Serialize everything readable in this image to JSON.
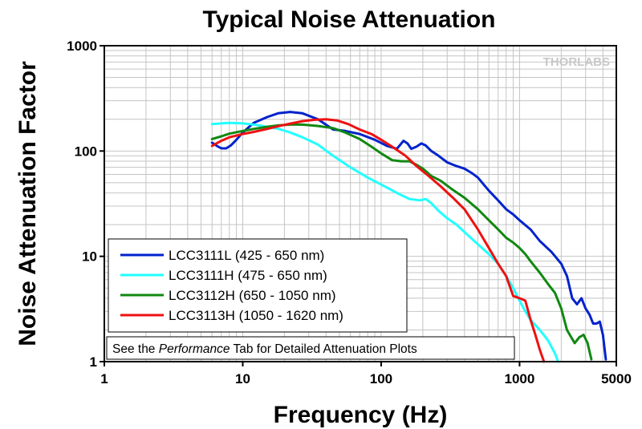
{
  "chart_data": {
    "type": "line",
    "title": "Typical Noise Attenuation",
    "xlabel": "Frequency (Hz)",
    "ylabel": "Noise Attenuation Factor",
    "x_scale": "log",
    "y_scale": "log",
    "xlim": [
      1,
      5000
    ],
    "ylim": [
      1,
      1000
    ],
    "x_ticks": [
      {
        "value": 1,
        "label": "1"
      },
      {
        "value": 10,
        "label": "10"
      },
      {
        "value": 100,
        "label": "100"
      },
      {
        "value": 1000,
        "label": "1000"
      },
      {
        "value": 5000,
        "label": "5000"
      }
    ],
    "y_ticks": [
      {
        "value": 1,
        "label": "1"
      },
      {
        "value": 10,
        "label": "10"
      },
      {
        "value": 100,
        "label": "100"
      },
      {
        "value": 1000,
        "label": "1000"
      }
    ],
    "grid": true,
    "legend_position": "bottom-left",
    "watermark": "THORLABS",
    "note": {
      "prefix": "See the ",
      "emphasis": "Performance",
      "suffix": " Tab for Detailed Attenuation Plots"
    },
    "series": [
      {
        "name": "LCC3111L (425 - 650 nm)",
        "color": "#0022cc",
        "x": [
          6,
          6.5,
          7,
          7.6,
          8.2,
          9,
          10,
          12,
          15,
          18,
          22,
          27,
          35,
          45,
          55,
          70,
          90,
          110,
          130,
          145,
          155,
          165,
          180,
          195,
          210,
          230,
          260,
          300,
          350,
          400,
          450,
          500,
          600,
          700,
          800,
          900,
          1000,
          1200,
          1400,
          1700,
          2000,
          2200,
          2400,
          2600,
          2800,
          3000,
          3200,
          3400,
          3600,
          3800,
          4000,
          4200
        ],
        "y": [
          120,
          112,
          106,
          106,
          113,
          128,
          150,
          185,
          210,
          228,
          235,
          228,
          200,
          160,
          155,
          145,
          128,
          112,
          105,
          125,
          118,
          105,
          110,
          118,
          113,
          100,
          90,
          78,
          72,
          68,
          62,
          56,
          42,
          34,
          28,
          25,
          22,
          18,
          14,
          11,
          8.5,
          6.5,
          4,
          3.5,
          4,
          3.2,
          2.8,
          2.3,
          2.3,
          2.4,
          1.8,
          1.05
        ]
      },
      {
        "name": "LCC3111H (475 - 650 nm)",
        "color": "#22ffff",
        "x": [
          6,
          7,
          8,
          10,
          12,
          15,
          18,
          22,
          27,
          35,
          45,
          60,
          80,
          100,
          130,
          160,
          190,
          210,
          230,
          260,
          300,
          350,
          400,
          500,
          600,
          700,
          800,
          900,
          1000,
          1100,
          1200,
          1400,
          1600,
          1800,
          1900
        ],
        "y": [
          180,
          183,
          185,
          183,
          178,
          170,
          163,
          150,
          135,
          115,
          90,
          70,
          56,
          48,
          40,
          35,
          34,
          35,
          32,
          27,
          23,
          20,
          17,
          13,
          10.5,
          8.5,
          6.5,
          5,
          3.8,
          3,
          2.5,
          2,
          1.6,
          1.2,
          1.0
        ]
      },
      {
        "name": "LCC3112H (650 - 1050 nm)",
        "color": "#118811",
        "x": [
          6,
          7,
          8,
          10,
          12,
          15,
          18,
          22,
          27,
          35,
          45,
          55,
          70,
          85,
          100,
          120,
          140,
          160,
          180,
          200,
          230,
          270,
          320,
          400,
          500,
          600,
          700,
          800,
          900,
          1000,
          1100,
          1200,
          1400,
          1600,
          1800,
          2000,
          2200,
          2500,
          2700,
          2900,
          3100,
          3300
        ],
        "y": [
          130,
          138,
          146,
          155,
          162,
          170,
          175,
          178,
          178,
          173,
          165,
          150,
          130,
          110,
          95,
          82,
          80,
          80,
          74,
          68,
          58,
          52,
          44,
          36,
          28,
          22,
          18,
          15,
          13.5,
          12,
          10.5,
          9,
          7,
          5.5,
          4.5,
          3.2,
          2,
          1.5,
          1.7,
          1.8,
          1.5,
          1.05
        ]
      },
      {
        "name": "LCC3113H (1050 - 1620 nm)",
        "color": "#ee1111",
        "x": [
          6,
          7,
          8,
          9,
          10,
          12,
          15,
          18,
          22,
          27,
          33,
          40,
          48,
          58,
          70,
          85,
          100,
          120,
          150,
          180,
          220,
          270,
          330,
          400,
          500,
          600,
          700,
          800,
          900,
          1000,
          1100,
          1200,
          1300,
          1400,
          1500
        ],
        "y": [
          112,
          125,
          135,
          140,
          145,
          152,
          162,
          172,
          182,
          192,
          198,
          200,
          195,
          180,
          160,
          145,
          128,
          110,
          90,
          72,
          58,
          46,
          36,
          28,
          18,
          12,
          8.5,
          6.5,
          4.2,
          4,
          3.8,
          2.5,
          1.8,
          1.3,
          1.0
        ]
      }
    ]
  }
}
